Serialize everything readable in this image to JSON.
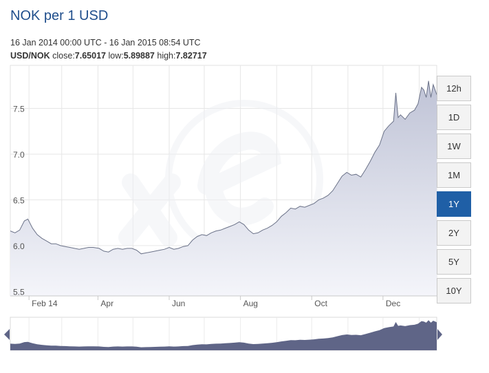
{
  "header": {
    "title": "NOK per 1 USD",
    "date_range": "16 Jan 2014 00:00 UTC - 16 Jan 2015 08:54 UTC",
    "pair": "USD/NOK",
    "close_label": "close:",
    "close_value": "7.65017",
    "low_label": "low:",
    "low_value": "5.89887",
    "high_label": "high:",
    "high_value": "7.82717"
  },
  "periods": [
    {
      "label": "12h",
      "active": false
    },
    {
      "label": "1D",
      "active": false
    },
    {
      "label": "1W",
      "active": false
    },
    {
      "label": "1M",
      "active": false
    },
    {
      "label": "1Y",
      "active": true
    },
    {
      "label": "2Y",
      "active": false
    },
    {
      "label": "5Y",
      "active": false
    },
    {
      "label": "10Y",
      "active": false
    }
  ],
  "colors": {
    "line": "#6b7288",
    "area_top": "#bfc3d6",
    "area_bottom": "#f4f5fa",
    "navigator_area": "#5f6587",
    "accent": "#1f5fa6",
    "title": "#1f4e8c"
  },
  "chart_data": {
    "type": "area",
    "title": "NOK per 1 USD",
    "xlabel": "",
    "ylabel": "",
    "x_ticks": [
      "Feb 14",
      "Apr",
      "Jun",
      "Aug",
      "Oct",
      "Dec"
    ],
    "y_ticks": [
      "5.5",
      "6.0",
      "6.5",
      "7.0",
      "7.5"
    ],
    "ylim": [
      5.45,
      7.97
    ],
    "xlim": [
      "2014-01-16",
      "2015-01-16"
    ],
    "grid": true,
    "series": [
      {
        "values": [
          [
            "2014-01-16",
            6.16
          ],
          [
            "2014-01-20",
            6.14
          ],
          [
            "2014-01-24",
            6.17
          ],
          [
            "2014-01-28",
            6.27
          ],
          [
            "2014-01-31",
            6.29
          ],
          [
            "2014-02-04",
            6.19
          ],
          [
            "2014-02-08",
            6.12
          ],
          [
            "2014-02-12",
            6.08
          ],
          [
            "2014-02-16",
            6.05
          ],
          [
            "2014-02-20",
            6.02
          ],
          [
            "2014-02-24",
            6.02
          ],
          [
            "2014-02-28",
            6.0
          ],
          [
            "2014-03-04",
            5.99
          ],
          [
            "2014-03-08",
            5.98
          ],
          [
            "2014-03-12",
            5.97
          ],
          [
            "2014-03-16",
            5.96
          ],
          [
            "2014-03-20",
            5.97
          ],
          [
            "2014-03-24",
            5.98
          ],
          [
            "2014-03-28",
            5.98
          ],
          [
            "2014-04-02",
            5.97
          ],
          [
            "2014-04-06",
            5.94
          ],
          [
            "2014-04-10",
            5.93
          ],
          [
            "2014-04-14",
            5.96
          ],
          [
            "2014-04-18",
            5.97
          ],
          [
            "2014-04-22",
            5.96
          ],
          [
            "2014-04-26",
            5.97
          ],
          [
            "2014-04-30",
            5.97
          ],
          [
            "2014-05-04",
            5.95
          ],
          [
            "2014-05-08",
            5.91
          ],
          [
            "2014-05-12",
            5.92
          ],
          [
            "2014-05-16",
            5.93
          ],
          [
            "2014-05-20",
            5.94
          ],
          [
            "2014-05-24",
            5.95
          ],
          [
            "2014-05-28",
            5.96
          ],
          [
            "2014-06-01",
            5.98
          ],
          [
            "2014-06-05",
            5.96
          ],
          [
            "2014-06-09",
            5.97
          ],
          [
            "2014-06-13",
            5.99
          ],
          [
            "2014-06-17",
            6.0
          ],
          [
            "2014-06-21",
            6.06
          ],
          [
            "2014-06-25",
            6.1
          ],
          [
            "2014-06-29",
            6.12
          ],
          [
            "2014-07-03",
            6.11
          ],
          [
            "2014-07-07",
            6.14
          ],
          [
            "2014-07-11",
            6.16
          ],
          [
            "2014-07-15",
            6.17
          ],
          [
            "2014-07-19",
            6.19
          ],
          [
            "2014-07-23",
            6.21
          ],
          [
            "2014-07-27",
            6.23
          ],
          [
            "2014-07-31",
            6.26
          ],
          [
            "2014-08-04",
            6.23
          ],
          [
            "2014-08-08",
            6.17
          ],
          [
            "2014-08-12",
            6.13
          ],
          [
            "2014-08-16",
            6.14
          ],
          [
            "2014-08-20",
            6.17
          ],
          [
            "2014-08-24",
            6.19
          ],
          [
            "2014-08-28",
            6.22
          ],
          [
            "2014-09-01",
            6.26
          ],
          [
            "2014-09-05",
            6.32
          ],
          [
            "2014-09-09",
            6.36
          ],
          [
            "2014-09-13",
            6.41
          ],
          [
            "2014-09-17",
            6.4
          ],
          [
            "2014-09-21",
            6.43
          ],
          [
            "2014-09-25",
            6.42
          ],
          [
            "2014-09-29",
            6.44
          ],
          [
            "2014-10-03",
            6.46
          ],
          [
            "2014-10-07",
            6.5
          ],
          [
            "2014-10-11",
            6.52
          ],
          [
            "2014-10-15",
            6.55
          ],
          [
            "2014-10-19",
            6.6
          ],
          [
            "2014-10-23",
            6.68
          ],
          [
            "2014-10-27",
            6.76
          ],
          [
            "2014-10-31",
            6.8
          ],
          [
            "2014-11-04",
            6.77
          ],
          [
            "2014-11-08",
            6.78
          ],
          [
            "2014-11-12",
            6.75
          ],
          [
            "2014-11-16",
            6.83
          ],
          [
            "2014-11-20",
            6.92
          ],
          [
            "2014-11-24",
            7.02
          ],
          [
            "2014-11-28",
            7.1
          ],
          [
            "2014-12-02",
            7.25
          ],
          [
            "2014-12-06",
            7.31
          ],
          [
            "2014-12-10",
            7.36
          ],
          [
            "2014-12-12",
            7.67
          ],
          [
            "2014-12-14",
            7.4
          ],
          [
            "2014-12-16",
            7.43
          ],
          [
            "2014-12-20",
            7.38
          ],
          [
            "2014-12-24",
            7.45
          ],
          [
            "2014-12-28",
            7.48
          ],
          [
            "2014-12-31",
            7.55
          ],
          [
            "2015-01-03",
            7.73
          ],
          [
            "2015-01-05",
            7.7
          ],
          [
            "2015-01-07",
            7.62
          ],
          [
            "2015-01-09",
            7.8
          ],
          [
            "2015-01-11",
            7.62
          ],
          [
            "2015-01-13",
            7.76
          ],
          [
            "2015-01-16",
            7.65
          ]
        ]
      }
    ]
  }
}
